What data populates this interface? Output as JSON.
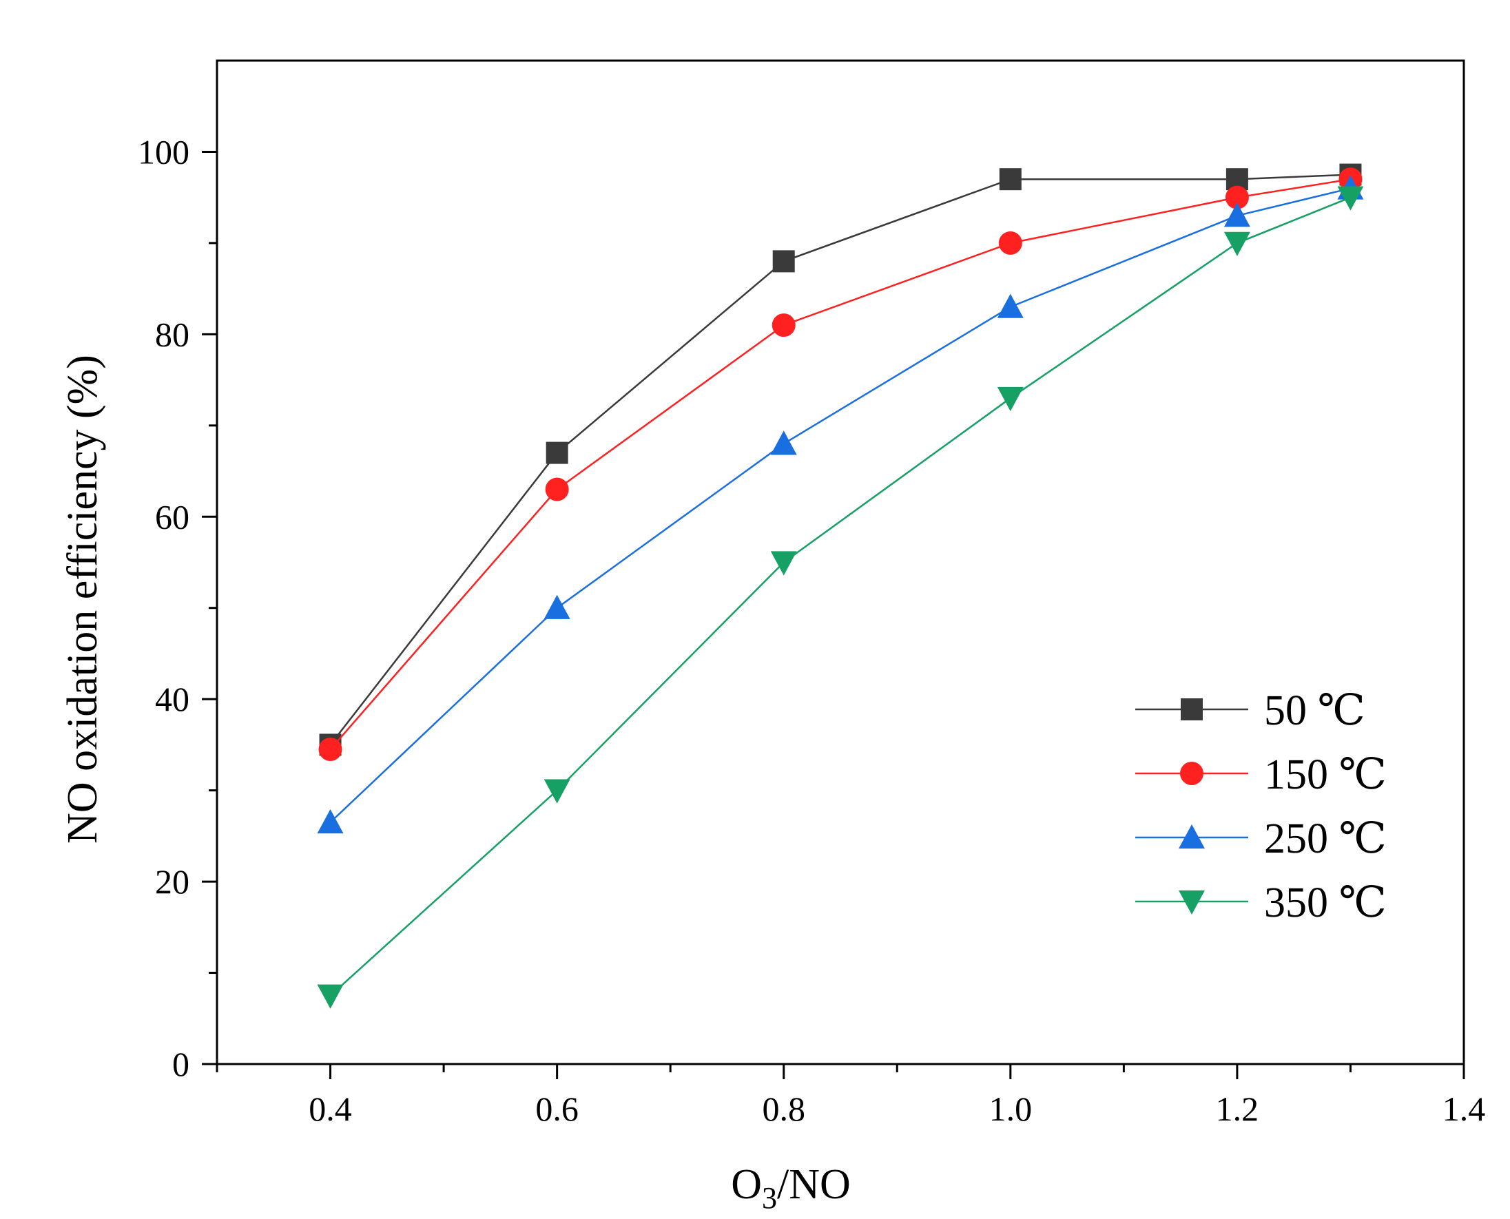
{
  "chart_data": {
    "type": "line",
    "title": "",
    "xlabel_parts": {
      "prefix": "O",
      "subscript": "3",
      "suffix": "/NO"
    },
    "ylabel": "NO oxidation efficiency (%)",
    "xlim": [
      0.3,
      1.4
    ],
    "ylim": [
      0,
      110
    ],
    "x_ticks": [
      0.4,
      0.6,
      0.8,
      1.0,
      1.2,
      1.4
    ],
    "x_tick_labels": [
      "0.4",
      "0.6",
      "0.8",
      "1.0",
      "1.2",
      "1.4"
    ],
    "x_minor_ticks": [
      0.3,
      0.5,
      0.7,
      0.9,
      1.1,
      1.3
    ],
    "y_ticks": [
      0,
      20,
      40,
      60,
      80,
      100
    ],
    "y_tick_labels": [
      "0",
      "20",
      "40",
      "60",
      "80",
      "100"
    ],
    "y_minor_ticks": [
      10,
      30,
      50,
      70,
      90
    ],
    "grid": false,
    "legend_position": "bottom-right",
    "series": [
      {
        "name": "50 ℃",
        "color": "#3a3a3a",
        "marker": "square",
        "x": [
          0.4,
          0.6,
          0.8,
          1.0,
          1.2,
          1.3
        ],
        "values": [
          35,
          67,
          88,
          97,
          97,
          97.5
        ]
      },
      {
        "name": "150 ℃",
        "color": "#ff2020",
        "marker": "circle",
        "x": [
          0.4,
          0.6,
          0.8,
          1.0,
          1.2,
          1.3
        ],
        "values": [
          34.5,
          63,
          81,
          90,
          95,
          97
        ]
      },
      {
        "name": "250 ℃",
        "color": "#1a6fe0",
        "marker": "triangle-up",
        "x": [
          0.4,
          0.6,
          0.8,
          1.0,
          1.2,
          1.3
        ],
        "values": [
          26.5,
          50,
          68,
          83,
          93,
          96
        ]
      },
      {
        "name": "350 ℃",
        "color": "#16a064",
        "marker": "triangle-down",
        "x": [
          0.4,
          0.6,
          0.8,
          1.0,
          1.2,
          1.3
        ],
        "values": [
          7.5,
          30,
          55,
          73,
          90,
          95
        ]
      }
    ]
  }
}
